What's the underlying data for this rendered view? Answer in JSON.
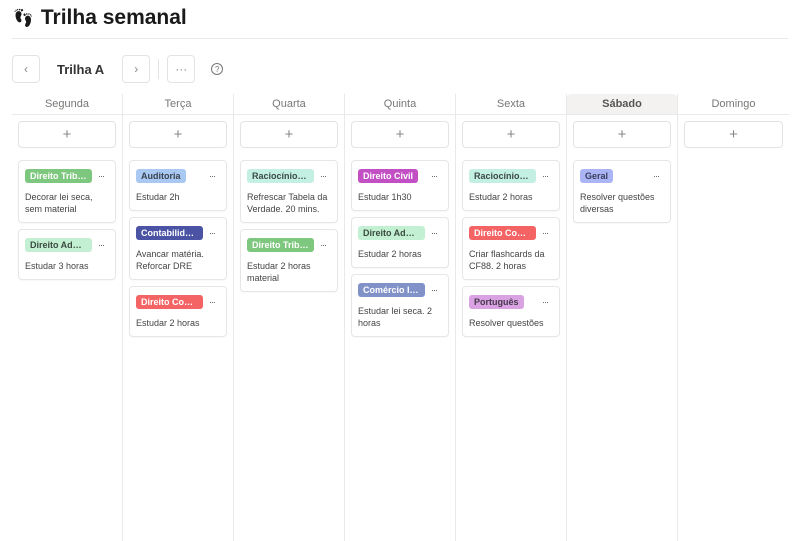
{
  "page": {
    "title": "Trilha semanal",
    "icon": "footprints-icon"
  },
  "toolbar": {
    "prev": "‹",
    "trail_name": "Trilha A",
    "next": "›",
    "more": "···",
    "help": "?"
  },
  "board": {
    "add_label": "+",
    "more_label": "···",
    "columns": [
      {
        "day": "Segunda",
        "highlighted": false,
        "cards": [
          {
            "tag": "Direito Tribu...",
            "color": "#7ec77e",
            "text_color": "#ffffff",
            "desc": "Decorar lei seca, sem material"
          },
          {
            "tag": "Direito Admi...",
            "color": "#c3f0d3",
            "text_color": "#3c4a40",
            "desc": "Estudar 3 horas"
          }
        ]
      },
      {
        "day": "Terça",
        "highlighted": false,
        "cards": [
          {
            "tag": "Auditoria",
            "color": "#a9c9f2",
            "text_color": "#3a4250",
            "desc": "Estudar 2h"
          },
          {
            "tag": "Contabilidade",
            "color": "#4b54a4",
            "text_color": "#ffffff",
            "desc": "Avancar matéria. Reforcar DRE"
          },
          {
            "tag": "Direito Cons...",
            "color": "#f46464",
            "text_color": "#ffffff",
            "desc": "Estudar 2 horas"
          }
        ]
      },
      {
        "day": "Quarta",
        "highlighted": false,
        "cards": [
          {
            "tag": "Raciocínio L...",
            "color": "#c4f0e3",
            "text_color": "#3c4a44",
            "desc": "Refrescar Tabela da Verdade. 20 mins."
          },
          {
            "tag": "Direito Tribu...",
            "color": "#7ec77e",
            "text_color": "#ffffff",
            "desc": "Estudar 2 horas material"
          }
        ]
      },
      {
        "day": "Quinta",
        "highlighted": false,
        "cards": [
          {
            "tag": "Direito Civil",
            "color": "#c24fc4",
            "text_color": "#ffffff",
            "desc": "Estudar 1h30"
          },
          {
            "tag": "Direito Admi...",
            "color": "#c3f0d3",
            "text_color": "#3c4a40",
            "desc": "Estudar 2 horas"
          },
          {
            "tag": "Comércio In...",
            "color": "#8092c8",
            "text_color": "#ffffff",
            "desc": "Estudar lei seca. 2 horas"
          }
        ]
      },
      {
        "day": "Sexta",
        "highlighted": false,
        "cards": [
          {
            "tag": "Raciocínio L...",
            "color": "#c4f0e3",
            "text_color": "#3c4a44",
            "desc": "Estudar 2 horas"
          },
          {
            "tag": "Direito Cons...",
            "color": "#f46464",
            "text_color": "#ffffff",
            "desc": "Criar flashcards da CF88. 2 horas"
          },
          {
            "tag": "Português",
            "color": "#daa2e2",
            "text_color": "#44384a",
            "desc": "Resolver questões"
          }
        ]
      },
      {
        "day": "Sábado",
        "highlighted": true,
        "cards": [
          {
            "tag": "Geral",
            "color": "#abb5f5",
            "text_color": "#363c5a",
            "desc": "Resolver questões diversas"
          }
        ]
      },
      {
        "day": "Domingo",
        "highlighted": false,
        "cards": []
      }
    ]
  }
}
